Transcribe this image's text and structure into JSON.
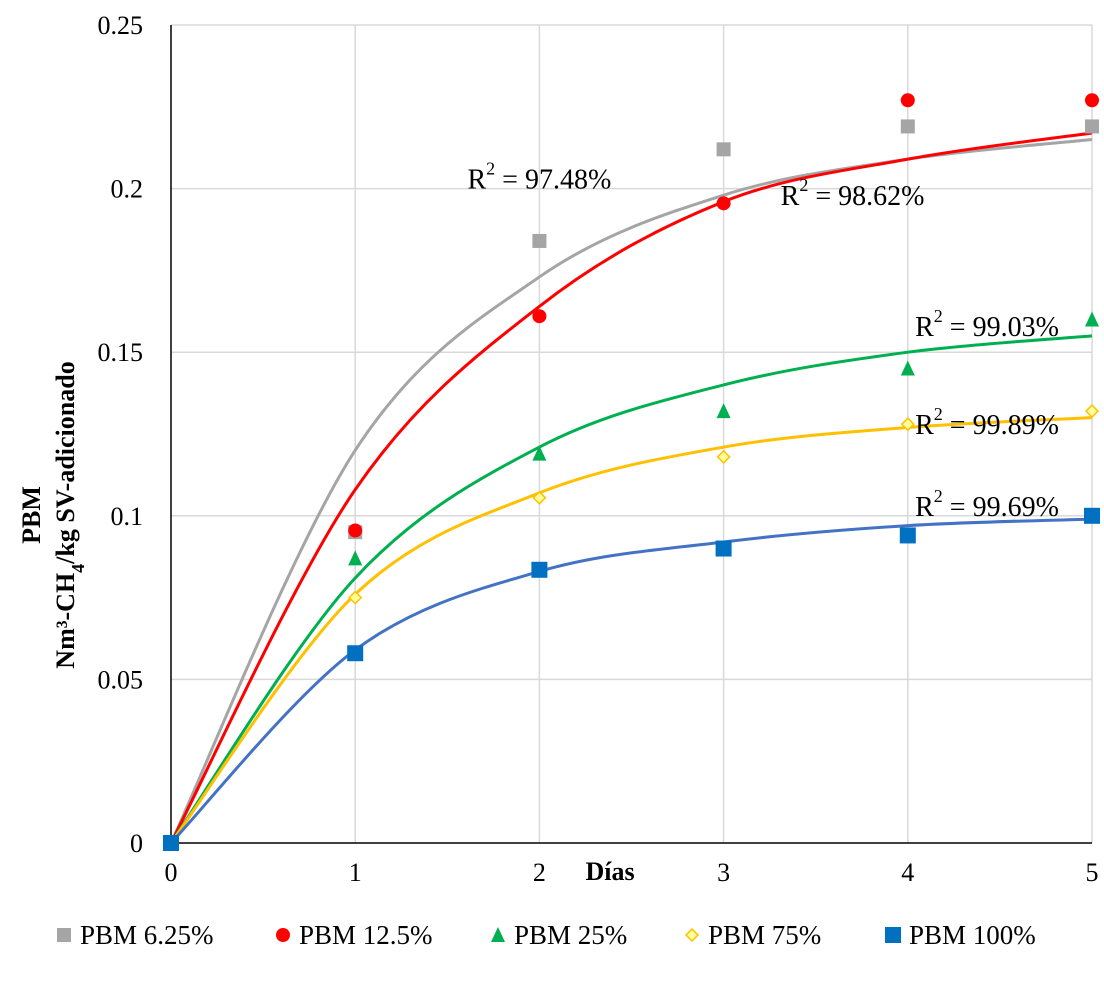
{
  "chart_data": {
    "type": "scatter",
    "title": "",
    "xlabel": "Días",
    "ylabel_line1": "PBM",
    "ylabel_line2_parts": [
      "Nm³-CH",
      "4",
      "/kg SV-adicionado"
    ],
    "xlim": [
      0,
      5
    ],
    "ylim": [
      0,
      0.25
    ],
    "x_ticks": [
      0,
      1,
      2,
      3,
      4,
      5
    ],
    "x_tick_labels": [
      "0",
      "1",
      "2",
      "3",
      "4",
      "5"
    ],
    "y_ticks": [
      0,
      0.05,
      0.1,
      0.15,
      0.2,
      0.25
    ],
    "y_tick_labels": [
      "0",
      "0.05",
      "0.1",
      "0.15",
      "0.2",
      "0.25"
    ],
    "grid": true,
    "legend_position": "bottom",
    "series": [
      {
        "name": "PBM 6.25%",
        "marker": "square",
        "color": "#A5A5A5",
        "x": [
          0,
          1,
          2,
          3,
          4,
          5
        ],
        "y": [
          0,
          0.095,
          0.184,
          0.212,
          0.219,
          0.219
        ],
        "fit": [
          0,
          0.12,
          0.173,
          0.198,
          0.209,
          0.215
        ],
        "r2_label": "97.48%"
      },
      {
        "name": "PBM 12.5%",
        "marker": "circle",
        "color": "#FF0000",
        "x": [
          0,
          1,
          2,
          3,
          4,
          5
        ],
        "y": [
          0,
          0.0955,
          0.161,
          0.1955,
          0.227,
          0.227
        ],
        "fit": [
          0,
          0.108,
          0.164,
          0.196,
          0.209,
          0.217
        ],
        "r2_label": "98.62%"
      },
      {
        "name": "PBM 25%",
        "marker": "triangle",
        "color": "#00B050",
        "x": [
          0,
          1,
          2,
          3,
          4,
          5
        ],
        "y": [
          0,
          0.087,
          0.119,
          0.132,
          0.145,
          0.16
        ],
        "fit": [
          0,
          0.081,
          0.121,
          0.14,
          0.15,
          0.155
        ],
        "r2_label": "99.03%"
      },
      {
        "name": "PBM 75%",
        "marker": "diamond",
        "color": "#FFC000",
        "x": [
          0,
          1,
          2,
          3,
          4,
          5
        ],
        "y": [
          0,
          0.075,
          0.1055,
          0.118,
          0.128,
          0.132
        ],
        "fit": [
          0,
          0.076,
          0.107,
          0.121,
          0.127,
          0.13
        ],
        "r2_label": "99.89%"
      },
      {
        "name": "PBM 100%",
        "marker": "square",
        "color": "#0070C0",
        "fitColor": "#4472C4",
        "x": [
          0,
          1,
          2,
          3,
          4,
          5
        ],
        "y": [
          0,
          0.058,
          0.0835,
          0.09,
          0.094,
          0.1
        ],
        "fit": [
          0,
          0.059,
          0.083,
          0.092,
          0.097,
          0.099
        ],
        "r2_label": "99.69%"
      }
    ],
    "annotations": [
      {
        "series": 0,
        "x": 2.0,
        "y": 0.2
      },
      {
        "series": 1,
        "x": 3.7,
        "y": 0.195
      },
      {
        "series": 2,
        "x": 4.43,
        "y": 0.155
      },
      {
        "series": 3,
        "x": 4.43,
        "y": 0.125
      },
      {
        "series": 4,
        "x": 4.43,
        "y": 0.1
      }
    ]
  }
}
